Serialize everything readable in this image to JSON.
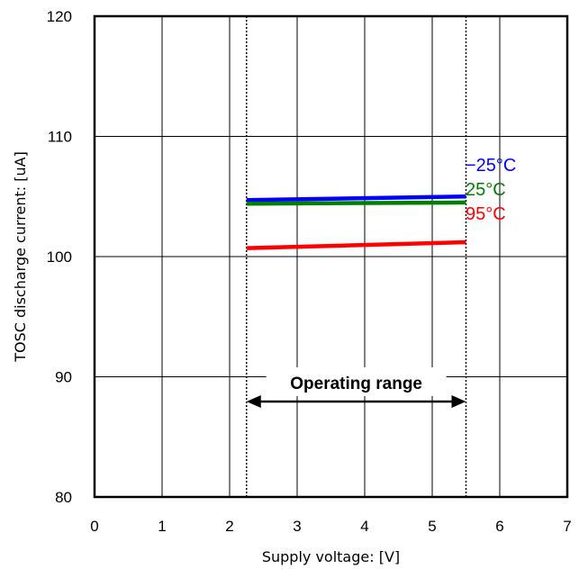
{
  "chart_data": {
    "type": "line",
    "xlabel": "Supply voltage: [V]",
    "ylabel": "TOSC discharge current: [uA]",
    "xlim": [
      0,
      7
    ],
    "ylim": [
      80,
      120
    ],
    "x_ticks": [
      "0",
      "1",
      "2",
      "3",
      "4",
      "5",
      "6",
      "7"
    ],
    "y_ticks": [
      "80",
      "90",
      "100",
      "110",
      "120"
    ],
    "grid": true,
    "series": [
      {
        "name": "−25°C",
        "color": "#0000ff",
        "x": [
          2.25,
          5.5
        ],
        "y": [
          104.7,
          105.0
        ]
      },
      {
        "name": "25°C",
        "color": "#008000",
        "x": [
          2.25,
          5.5
        ],
        "y": [
          104.4,
          104.5
        ]
      },
      {
        "name": "95°C",
        "color": "#ff0000",
        "x": [
          2.25,
          5.5
        ],
        "y": [
          100.7,
          101.2
        ]
      }
    ],
    "operating_range": {
      "label": "Operating range",
      "x": [
        2.25,
        5.5
      ]
    }
  }
}
